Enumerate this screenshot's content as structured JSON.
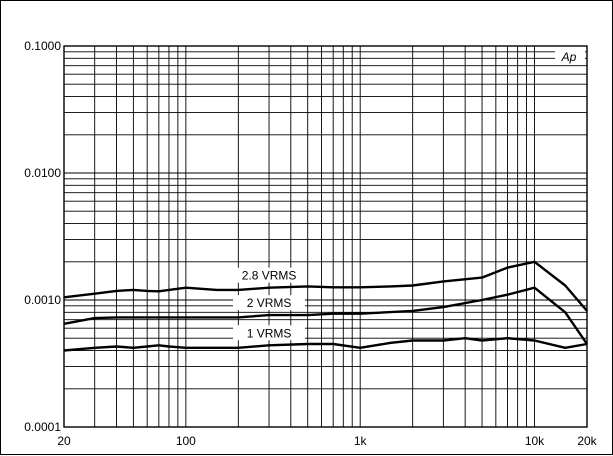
{
  "chart_data": {
    "type": "line",
    "title": "",
    "xlabel": "",
    "ylabel": "",
    "xscale": "log",
    "yscale": "log",
    "xlim": [
      20,
      20000
    ],
    "ylim": [
      0.0001,
      0.1
    ],
    "grid": true,
    "legend": "inline labels",
    "x_tick_labels": [
      {
        "value": 20,
        "label": "20"
      },
      {
        "value": 100,
        "label": "100"
      },
      {
        "value": 1000,
        "label": "1k"
      },
      {
        "value": 10000,
        "label": "10k"
      },
      {
        "value": 20000,
        "label": "20k"
      }
    ],
    "y_tick_labels": [
      {
        "value": 0.1,
        "label": "0.1000"
      },
      {
        "value": 0.01,
        "label": "0.0100"
      },
      {
        "value": 0.001,
        "label": "0.0010"
      },
      {
        "value": 0.0001,
        "label": "0.0001"
      }
    ],
    "brand_mark": "Ap",
    "series": [
      {
        "name": "2.8 VRMS",
        "color": "#000000",
        "x": [
          20,
          30,
          40,
          50,
          60,
          70,
          80,
          100,
          150,
          200,
          300,
          500,
          700,
          1000,
          1500,
          2000,
          3000,
          5000,
          7000,
          10000,
          15000,
          20000
        ],
        "y": [
          0.00105,
          0.00112,
          0.00118,
          0.0012,
          0.00118,
          0.00117,
          0.0012,
          0.00125,
          0.0012,
          0.0012,
          0.00125,
          0.00128,
          0.00126,
          0.00126,
          0.00128,
          0.0013,
          0.0014,
          0.0015,
          0.0018,
          0.002,
          0.0013,
          0.00082
        ]
      },
      {
        "name": "2 VRMS",
        "color": "#000000",
        "x": [
          20,
          30,
          40,
          50,
          70,
          100,
          200,
          300,
          500,
          700,
          1000,
          2000,
          3000,
          5000,
          7000,
          10000,
          15000,
          20000
        ],
        "y": [
          0.00065,
          0.00072,
          0.00073,
          0.00073,
          0.00073,
          0.00073,
          0.00073,
          0.00076,
          0.00076,
          0.00078,
          0.00078,
          0.00082,
          0.00088,
          0.001,
          0.0011,
          0.00125,
          0.0008,
          0.00045
        ]
      },
      {
        "name": "1 VRMS",
        "color": "#000000",
        "x": [
          20,
          30,
          40,
          50,
          60,
          70,
          80,
          100,
          150,
          200,
          300,
          500,
          700,
          1000,
          1500,
          2000,
          3000,
          4000,
          5000,
          7000,
          10000,
          15000,
          20000
        ],
        "y": [
          0.0004,
          0.00042,
          0.00043,
          0.00042,
          0.00043,
          0.00044,
          0.00043,
          0.00042,
          0.00042,
          0.00042,
          0.00044,
          0.00045,
          0.00045,
          0.00042,
          0.00046,
          0.00048,
          0.00048,
          0.0005,
          0.00048,
          0.0005,
          0.00048,
          0.00042,
          0.00045
        ]
      }
    ]
  }
}
